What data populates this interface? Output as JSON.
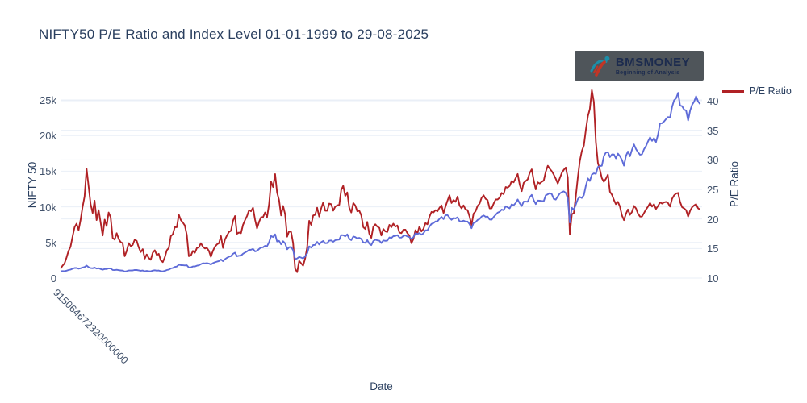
{
  "header": {
    "title": "NIFTY50 P/E Ratio and Index Level 01-01-1999 to 29-08-2025"
  },
  "logo": {
    "brand": "BMSMONEY",
    "tagline": "Beginning of Analysis",
    "background": "#4f555a",
    "text_color": "#1c2b4e",
    "icon_teal": "#1c8ea8",
    "icon_red": "#c23526"
  },
  "legend": {
    "items": [
      {
        "label": "P/E Ratio",
        "color": "#b02125"
      }
    ]
  },
  "chart_data": {
    "type": "line",
    "title": "NIFTY50 P/E Ratio and Index Level 01-01-1999 to 29-08-2025",
    "xlabel": "Date",
    "x_range_years": [
      1999.0,
      2025.664
    ],
    "x_tick_labels": [
      "915064672320000000"
    ],
    "grid": true,
    "grid_color": "#eaeff7",
    "legend_position": "top-right",
    "left_axis": {
      "label": "NIFTY 50",
      "tick_labels": [
        "0",
        "5k",
        "10k",
        "15k",
        "20k",
        "25k"
      ],
      "tick_values": [
        0,
        5000,
        10000,
        15000,
        20000,
        25000
      ],
      "range": [
        -800,
        26800
      ]
    },
    "right_axis": {
      "label": "P/E Ratio",
      "tick_labels": [
        "10",
        "15",
        "20",
        "25",
        "30",
        "35",
        "40"
      ],
      "tick_values": [
        10,
        15,
        20,
        25,
        30,
        35,
        40
      ],
      "range": [
        9.0,
        42.3
      ]
    },
    "sampling": "monthly",
    "start_year": 1999,
    "points_per_year": 12,
    "series": [
      {
        "name": "NIFTY 50",
        "axis": "left",
        "color": "#5e6bd8",
        "values": [
          966,
          981,
          978,
          1040,
          1132,
          1187,
          1310,
          1412,
          1413,
          1325,
          1376,
          1480,
          1546,
          1756,
          1528,
          1406,
          1380,
          1471,
          1333,
          1394,
          1271,
          1172,
          1268,
          1264,
          1371,
          1351,
          1148,
          1125,
          1168,
          1108,
          1072,
          1054,
          913,
          971,
          1067,
          1059,
          1075,
          1142,
          1130,
          1084,
          1029,
          1058,
          958,
          1011,
          963,
          951,
          1050,
          1094,
          1042,
          1063,
          978,
          934,
          1007,
          1134,
          1186,
          1357,
          1417,
          1556,
          1615,
          1880,
          1810,
          1800,
          1772,
          1796,
          1484,
          1506,
          1632,
          1632,
          1746,
          1787,
          1959,
          2081,
          2058,
          2103,
          2036,
          1903,
          2088,
          2221,
          2312,
          2385,
          2601,
          2371,
          2652,
          2837,
          3001,
          3075,
          3403,
          3558,
          3071,
          3128,
          3143,
          3414,
          3588,
          3744,
          3955,
          3966,
          4083,
          3745,
          3822,
          4088,
          4296,
          4318,
          4529,
          4464,
          5021,
          5901,
          5763,
          6139,
          5137,
          5223,
          4735,
          5166,
          4870,
          4041,
          4333,
          4360,
          3921,
          2650,
          2755,
          2959,
          2875,
          2764,
          3021,
          3474,
          4449,
          4291,
          4636,
          4662,
          5084,
          4712,
          5033,
          5201,
          4882,
          4922,
          5249,
          5278,
          5086,
          5313,
          5368,
          5402,
          6030,
          6018,
          5863,
          6135,
          5506,
          5333,
          5833,
          5750,
          5560,
          5647,
          5482,
          5001,
          4943,
          5327,
          4832,
          4624,
          5199,
          5385,
          5296,
          5248,
          4924,
          5279,
          5229,
          5259,
          5703,
          5620,
          5880,
          5905,
          6035,
          5693,
          5683,
          5930,
          5986,
          5842,
          5742,
          5472,
          5735,
          6299,
          6176,
          6304,
          6090,
          6277,
          6704,
          6696,
          7230,
          7611,
          7721,
          7954,
          7965,
          8322,
          8588,
          8283,
          8809,
          8845,
          8491,
          8182,
          8434,
          8369,
          8533,
          7971,
          7949,
          8066,
          7935,
          7946,
          7563,
          6987,
          7738,
          7850,
          8160,
          8288,
          8639,
          8786,
          8611,
          8626,
          8225,
          8186,
          8561,
          8880,
          9174,
          9304,
          9621,
          9521,
          10077,
          9918,
          9789,
          10335,
          10226,
          10531,
          11028,
          10493,
          10114,
          10739,
          10736,
          10714,
          11357,
          11680,
          10930,
          10386,
          10877,
          10863,
          10831,
          10793,
          11624,
          11748,
          11923,
          11789,
          11118,
          11023,
          11474,
          11877,
          12056,
          12168,
          11962,
          11202,
          7800,
          9860,
          9580,
          10302,
          11073,
          11388,
          11248,
          11642,
          12969,
          13982,
          13635,
          14529,
          14691,
          14631,
          15583,
          15722,
          15763,
          17132,
          17618,
          17672,
          16983,
          17354,
          17340,
          16794,
          17465,
          17103,
          16585,
          15780,
          17158,
          17759,
          17094,
          18012,
          18758,
          18105,
          17662,
          17304,
          17360,
          18065,
          18534,
          19189,
          19754,
          19254,
          19638,
          19080,
          20133,
          21731,
          21726,
          21983,
          22327,
          22605,
          22531,
          24011,
          24951,
          25236,
          26000,
          24205,
          24131,
          23645,
          23508,
          22125,
          23519,
          24334,
          24751,
          25517,
          24768,
          24427
        ]
      },
      {
        "name": "P/E Ratio",
        "axis": "right",
        "color": "#b02125",
        "values": [
          11.6,
          12.1,
          12.5,
          13.5,
          14.6,
          15.3,
          17.0,
          18.6,
          19.2,
          18.1,
          19.8,
          22.0,
          23.8,
          28.5,
          25.5,
          22.5,
          21.0,
          23.1,
          19.8,
          21.5,
          19.4,
          17.2,
          19.9,
          18.8,
          21.1,
          20.3,
          16.8,
          16.5,
          17.6,
          16.6,
          16.1,
          15.9,
          13.7,
          14.6,
          15.9,
          15.4,
          15.6,
          16.5,
          16.3,
          15.2,
          14.4,
          14.9,
          13.3,
          14.0,
          13.4,
          13.1,
          14.3,
          14.7,
          13.9,
          14.1,
          13.0,
          12.7,
          13.5,
          14.7,
          15.1,
          17.1,
          17.4,
          18.6,
          18.6,
          20.7,
          19.8,
          19.4,
          18.9,
          17.3,
          13.7,
          13.8,
          14.6,
          14.3,
          15.1,
          15.2,
          15.9,
          15.3,
          15.0,
          15.1,
          14.6,
          13.6,
          14.6,
          15.3,
          15.7,
          15.9,
          17.1,
          15.1,
          16.5,
          17.2,
          17.8,
          18.0,
          19.7,
          20.5,
          17.5,
          17.7,
          17.6,
          19.0,
          19.8,
          20.5,
          21.5,
          21.3,
          21.9,
          19.9,
          18.4,
          19.5,
          20.3,
          20.3,
          21.1,
          20.3,
          22.5,
          26.3,
          25.4,
          27.6,
          24.5,
          23.2,
          20.6,
          22.2,
          20.8,
          17.0,
          17.9,
          17.8,
          15.9,
          11.6,
          11.0,
          12.9,
          12.5,
          12.1,
          13.3,
          15.2,
          19.7,
          19.0,
          20.6,
          20.7,
          21.9,
          20.4,
          21.8,
          22.8,
          21.4,
          21.4,
          22.6,
          22.5,
          21.4,
          22.1,
          22.3,
          22.4,
          24.9,
          25.6,
          23.9,
          24.5,
          21.9,
          21.1,
          22.7,
          22.3,
          21.3,
          21.4,
          20.6,
          18.6,
          18.3,
          19.5,
          17.5,
          16.8,
          18.7,
          19.1,
          18.7,
          18.5,
          17.2,
          18.3,
          17.9,
          17.8,
          19.0,
          18.6,
          19.2,
          18.7,
          18.9,
          17.7,
          17.6,
          18.2,
          18.2,
          17.6,
          17.2,
          15.9,
          16.6,
          18.1,
          17.6,
          18.7,
          17.9,
          18.3,
          19.3,
          19.1,
          20.4,
          21.2,
          21.1,
          21.5,
          21.3,
          21.9,
          22.3,
          21.0,
          22.1,
          23.1,
          24.0,
          22.7,
          23.2,
          22.9,
          23.8,
          22.3,
          21.8,
          22.3,
          21.6,
          21.5,
          20.4,
          19.0,
          20.9,
          21.3,
          22.2,
          22.6,
          23.6,
          24.0,
          23.4,
          23.2,
          21.8,
          21.8,
          22.6,
          23.3,
          23.3,
          23.6,
          24.4,
          24.2,
          25.4,
          25.3,
          25.6,
          26.4,
          26.2,
          26.9,
          27.6,
          25.8,
          24.7,
          26.1,
          26.4,
          26.7,
          27.8,
          28.4,
          26.5,
          25.0,
          26.2,
          26.0,
          26.3,
          26.5,
          28.0,
          29.0,
          28.5,
          28.1,
          27.5,
          26.8,
          26.0,
          26.9,
          27.8,
          28.3,
          28.7,
          27.0,
          17.4,
          20.8,
          21.0,
          23.8,
          27.0,
          29.8,
          31.5,
          32.4,
          35.1,
          37.4,
          38.6,
          41.8,
          39.8,
          33.0,
          29.5,
          28.3,
          26.9,
          26.3,
          26.8,
          27.5,
          24.6,
          24.1,
          23.2,
          22.5,
          22.9,
          22.1,
          20.6,
          19.8,
          20.9,
          21.6,
          20.7,
          21.2,
          22.2,
          21.8,
          20.9,
          20.4,
          20.4,
          21.0,
          21.6,
          22.1,
          22.7,
          22.1,
          22.5,
          21.7,
          22.2,
          22.8,
          22.6,
          22.8,
          22.9,
          22.7,
          22.1,
          23.4,
          24.0,
          24.3,
          24.4,
          22.9,
          22.0,
          21.8,
          21.5,
          20.4,
          21.4,
          22.0,
          22.3,
          22.5,
          21.8,
          21.6
        ]
      }
    ]
  }
}
